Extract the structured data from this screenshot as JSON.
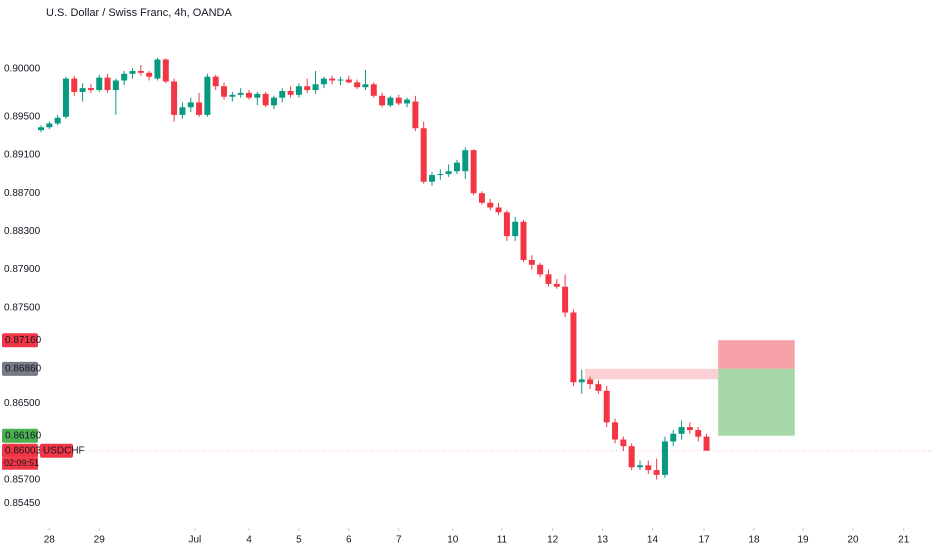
{
  "chart_data": {
    "type": "candlestick",
    "title": "U.S. Dollar / Swiss Franc, 4h, OANDA",
    "symbol": "USDCHF",
    "countdown": "02:09:51",
    "up_color": "#089981",
    "down_color": "#f23645",
    "ylim": [
      0.84963,
      0.90723
    ],
    "xlim": [
      -0.12,
      107.1
    ],
    "yticks": [
      {
        "value": 0.9,
        "label": "0.90000"
      },
      {
        "value": 0.895,
        "label": "0.89500"
      },
      {
        "value": 0.891,
        "label": "0.89100"
      },
      {
        "value": 0.887,
        "label": "0.88700"
      },
      {
        "value": 0.883,
        "label": "0.88300"
      },
      {
        "value": 0.879,
        "label": "0.87900"
      },
      {
        "value": 0.875,
        "label": "0.87500"
      },
      {
        "value": 0.865,
        "label": "0.86500"
      },
      {
        "value": 0.857,
        "label": "0.85700"
      },
      {
        "value": 0.8545,
        "label": "0.85450"
      }
    ],
    "xticks": [
      {
        "value": 1,
        "label": "28"
      },
      {
        "value": 7,
        "label": "29"
      },
      {
        "value": 18.5,
        "label": "Jul"
      },
      {
        "value": 25,
        "label": "4"
      },
      {
        "value": 31,
        "label": "5"
      },
      {
        "value": 37,
        "label": "6"
      },
      {
        "value": 43,
        "label": "7"
      },
      {
        "value": 49.5,
        "label": "10"
      },
      {
        "value": 55.4,
        "label": "11"
      },
      {
        "value": 61.5,
        "label": "12"
      },
      {
        "value": 67.5,
        "label": "13"
      },
      {
        "value": 73.5,
        "label": "14"
      },
      {
        "value": 79.7,
        "label": "17"
      },
      {
        "value": 85.7,
        "label": "18"
      },
      {
        "value": 91.6,
        "label": "19"
      },
      {
        "value": 97.6,
        "label": "20"
      },
      {
        "value": 103.7,
        "label": "21"
      }
    ],
    "price_labels": [
      {
        "value": 0.8716,
        "label": "0.87160",
        "color": "#f23645"
      },
      {
        "value": 0.8686,
        "label": "0.86860",
        "color": "#787b86"
      },
      {
        "value": 0.8616,
        "label": "0.86160",
        "color": "#4caf50"
      },
      {
        "value": 0.86003,
        "label": "0.86003",
        "color": "#f23645"
      }
    ],
    "position": {
      "stop": 0.8716,
      "entry": 0.8686,
      "target": 0.8616,
      "x": [
        81.4,
        90.6
      ],
      "stop_color": "#f7a1a8",
      "target_color": "#a5d6a7"
    },
    "zone": {
      "y": [
        0.8675,
        0.8686
      ],
      "x": [
        65.4,
        81.4
      ],
      "color": "#fbd0d4"
    },
    "open": [
      0.8936,
      0.8939,
      0.8943,
      0.895,
      0.899,
      0.8976,
      0.898,
      0.8978,
      0.8991,
      0.8978,
      0.8988,
      0.8995,
      0.8998,
      0.8996,
      0.899,
      0.901,
      0.8987,
      0.8952,
      0.896,
      0.8965,
      0.8952,
      0.8992,
      0.8982,
      0.8971,
      0.8973,
      0.8975,
      0.897,
      0.8974,
      0.8962,
      0.897,
      0.8977,
      0.8973,
      0.8982,
      0.8978,
      0.8984,
      0.899,
      0.8988,
      0.8989,
      0.8986,
      0.8981,
      0.8984,
      0.8972,
      0.8962,
      0.897,
      0.8964,
      0.8966,
      0.8938,
      0.8882,
      0.8889,
      0.889,
      0.8893,
      0.8893,
      0.8915,
      0.887,
      0.886,
      0.8855,
      0.885,
      0.8825,
      0.884,
      0.88,
      0.8795,
      0.8785,
      0.8775,
      0.8772,
      0.8745,
      0.8672,
      0.8675,
      0.867,
      0.8663,
      0.863,
      0.8612,
      0.8605,
      0.8583,
      0.8585,
      0.858,
      0.8575,
      0.861,
      0.8618,
      0.8625,
      0.8622,
      0.8615
    ],
    "high": [
      0.8941,
      0.8945,
      0.8952,
      0.8992,
      0.8993,
      0.8985,
      0.8984,
      0.8994,
      0.8995,
      0.899,
      0.8998,
      0.9001,
      0.9004,
      0.8998,
      0.9012,
      0.9011,
      0.899,
      0.8965,
      0.897,
      0.8975,
      0.8995,
      0.8994,
      0.8986,
      0.8976,
      0.898,
      0.8978,
      0.8976,
      0.8976,
      0.8972,
      0.898,
      0.8982,
      0.8985,
      0.899,
      0.8998,
      0.8992,
      0.8993,
      0.8992,
      0.8993,
      0.8989,
      0.8999,
      0.8986,
      0.8975,
      0.8972,
      0.8973,
      0.897,
      0.8972,
      0.8945,
      0.8892,
      0.8895,
      0.89,
      0.8905,
      0.8918,
      0.8916,
      0.8872,
      0.8864,
      0.886,
      0.8852,
      0.8845,
      0.8842,
      0.8805,
      0.8797,
      0.879,
      0.878,
      0.8785,
      0.8748,
      0.8685,
      0.8678,
      0.8674,
      0.8668,
      0.8634,
      0.8615,
      0.8608,
      0.859,
      0.859,
      0.8592,
      0.8615,
      0.8622,
      0.8632,
      0.863,
      0.8625,
      0.8618
    ],
    "low": [
      0.8934,
      0.8937,
      0.8941,
      0.8948,
      0.8972,
      0.8966,
      0.8975,
      0.8976,
      0.8975,
      0.8952,
      0.8983,
      0.899,
      0.8993,
      0.8988,
      0.8988,
      0.8985,
      0.8945,
      0.8948,
      0.8955,
      0.895,
      0.895,
      0.8978,
      0.8968,
      0.8966,
      0.897,
      0.8968,
      0.8962,
      0.896,
      0.8958,
      0.8965,
      0.897,
      0.897,
      0.8975,
      0.8974,
      0.898,
      0.8984,
      0.8983,
      0.8985,
      0.8979,
      0.8978,
      0.897,
      0.896,
      0.896,
      0.8962,
      0.896,
      0.8935,
      0.888,
      0.8878,
      0.8884,
      0.8887,
      0.889,
      0.8885,
      0.8868,
      0.8858,
      0.8852,
      0.8847,
      0.882,
      0.882,
      0.8798,
      0.879,
      0.8782,
      0.8772,
      0.877,
      0.874,
      0.8668,
      0.866,
      0.8665,
      0.866,
      0.8625,
      0.8608,
      0.86,
      0.858,
      0.858,
      0.8576,
      0.857,
      0.8572,
      0.8605,
      0.8612,
      0.8618,
      0.861,
      0.86
    ],
    "close": [
      0.8939,
      0.8943,
      0.8949,
      0.899,
      0.8976,
      0.898,
      0.8978,
      0.8991,
      0.8978,
      0.8988,
      0.8995,
      0.8998,
      0.8996,
      0.8992,
      0.901,
      0.8987,
      0.8952,
      0.896,
      0.8965,
      0.8952,
      0.8992,
      0.8982,
      0.8971,
      0.8973,
      0.8975,
      0.897,
      0.8974,
      0.8962,
      0.897,
      0.8977,
      0.8973,
      0.8982,
      0.8978,
      0.8984,
      0.899,
      0.8988,
      0.8989,
      0.8986,
      0.8981,
      0.8984,
      0.8972,
      0.8962,
      0.897,
      0.8964,
      0.8968,
      0.8938,
      0.8882,
      0.8889,
      0.889,
      0.8893,
      0.8902,
      0.8915,
      0.887,
      0.886,
      0.8855,
      0.885,
      0.8825,
      0.884,
      0.88,
      0.8795,
      0.8785,
      0.8775,
      0.8772,
      0.8745,
      0.8672,
      0.8675,
      0.867,
      0.8663,
      0.863,
      0.8612,
      0.8605,
      0.8583,
      0.8585,
      0.858,
      0.8575,
      0.861,
      0.8618,
      0.8625,
      0.8622,
      0.8615,
      0.86003
    ]
  }
}
